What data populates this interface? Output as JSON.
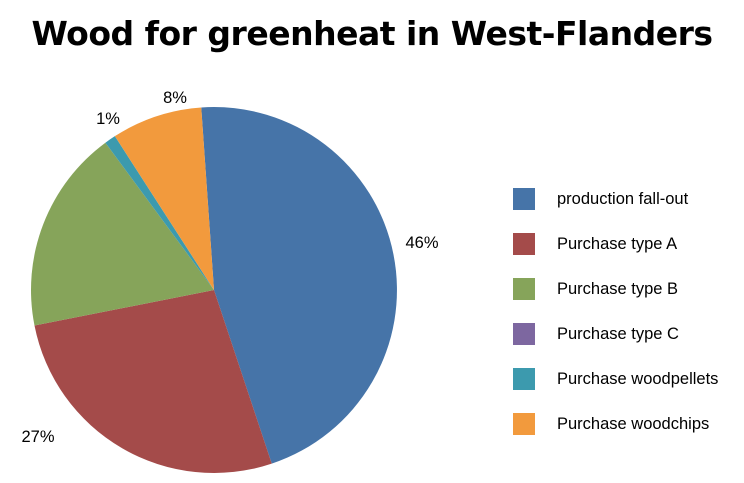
{
  "chart_data": {
    "type": "pie",
    "title": "Wood for greenheat in West-Flanders",
    "legend_position": "right",
    "slices": [
      {
        "name": "production fall-out",
        "value": 46,
        "label": "46%",
        "color": "#4674A8"
      },
      {
        "name": "Purchase type A",
        "value": 27,
        "label": "27%",
        "color": "#A44B4A"
      },
      {
        "name": "Purchase type B",
        "value": 18,
        "label": "",
        "color": "#86A45A"
      },
      {
        "name": "Purchase type C",
        "value": 0,
        "label": "",
        "color": "#7D67A0"
      },
      {
        "name": "Purchase woodpellets",
        "value": 1,
        "label": "1%",
        "color": "#3C9AAE"
      },
      {
        "name": "Purchase woodchips",
        "value": 8,
        "label": "8%",
        "color": "#F29A3D"
      }
    ]
  }
}
